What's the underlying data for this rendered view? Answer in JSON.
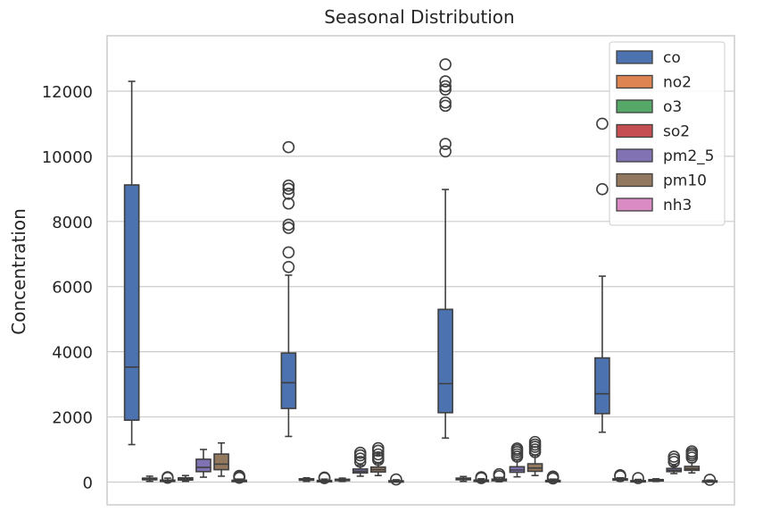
{
  "chart_data": {
    "type": "box",
    "title": "Seasonal Distribution",
    "xlabel": "",
    "ylabel": "Concentration",
    "ylim": [
      -700,
      13700
    ],
    "yticks": [
      0,
      2000,
      4000,
      6000,
      8000,
      10000,
      12000
    ],
    "grid": true,
    "legend_position": "top-right",
    "group_count": 4,
    "series": [
      {
        "name": "co",
        "color": "#4c72b0"
      },
      {
        "name": "no2",
        "color": "#dd8452"
      },
      {
        "name": "o3",
        "color": "#55a868"
      },
      {
        "name": "so2",
        "color": "#c44e52"
      },
      {
        "name": "pm2_5",
        "color": "#8172b3"
      },
      {
        "name": "pm10",
        "color": "#937860"
      },
      {
        "name": "nh3",
        "color": "#da8bc3"
      }
    ],
    "boxes": [
      [
        {
          "whislo": 1150,
          "q1": 1900,
          "med": 3530,
          "q3": 9120,
          "whishi": 12300,
          "fliers": []
        },
        {
          "whislo": 20,
          "q1": 70,
          "med": 95,
          "q3": 120,
          "whishi": 180,
          "fliers": []
        },
        {
          "whislo": 5,
          "q1": 20,
          "med": 35,
          "q3": 60,
          "whishi": 120,
          "fliers": [
            130,
            150
          ]
        },
        {
          "whislo": 20,
          "q1": 60,
          "med": 90,
          "q3": 130,
          "whishi": 200,
          "fliers": []
        },
        {
          "whislo": 150,
          "q1": 320,
          "med": 450,
          "q3": 700,
          "whishi": 1000,
          "fliers": []
        },
        {
          "whislo": 180,
          "q1": 380,
          "med": 550,
          "q3": 860,
          "whishi": 1200,
          "fliers": []
        },
        {
          "whislo": 5,
          "q1": 20,
          "med": 35,
          "q3": 55,
          "whishi": 90,
          "fliers": [
            130,
            160,
            190
          ]
        }
      ],
      [
        {
          "whislo": 1400,
          "q1": 2260,
          "med": 3050,
          "q3": 3960,
          "whishi": 6350,
          "fliers": [
            6600,
            7050,
            7800,
            7900,
            8550,
            8850,
            9000,
            9100,
            10280
          ]
        },
        {
          "whislo": 20,
          "q1": 55,
          "med": 80,
          "q3": 100,
          "whishi": 130,
          "fliers": []
        },
        {
          "whislo": 5,
          "q1": 15,
          "med": 30,
          "q3": 50,
          "whishi": 90,
          "fliers": [
            120,
            140
          ]
        },
        {
          "whislo": 20,
          "q1": 45,
          "med": 65,
          "q3": 85,
          "whishi": 120,
          "fliers": []
        },
        {
          "whislo": 180,
          "q1": 280,
          "med": 330,
          "q3": 400,
          "whishi": 520,
          "fliers": [
            620,
            720,
            820,
            900
          ]
        },
        {
          "whislo": 200,
          "q1": 310,
          "med": 380,
          "q3": 460,
          "whishi": 580,
          "fliers": [
            680,
            760,
            850,
            960,
            1040
          ]
        },
        {
          "whislo": 5,
          "q1": 15,
          "med": 25,
          "q3": 40,
          "whishi": 70,
          "fliers": [
            80
          ]
        }
      ],
      [
        {
          "whislo": 1350,
          "q1": 2130,
          "med": 3020,
          "q3": 5300,
          "whishi": 8980,
          "fliers": [
            10150,
            10380,
            11550,
            11650,
            12050,
            12150,
            12300,
            12820
          ]
        },
        {
          "whislo": 20,
          "q1": 70,
          "med": 95,
          "q3": 120,
          "whishi": 170,
          "fliers": []
        },
        {
          "whislo": 5,
          "q1": 20,
          "med": 40,
          "q3": 60,
          "whishi": 100,
          "fliers": [
            120,
            150
          ]
        },
        {
          "whislo": 10,
          "q1": 40,
          "med": 65,
          "q3": 90,
          "whishi": 140,
          "fliers": [
            180,
            240
          ]
        },
        {
          "whislo": 160,
          "q1": 300,
          "med": 370,
          "q3": 470,
          "whishi": 680,
          "fliers": [
            780,
            850,
            920,
            980,
            1030
          ]
        },
        {
          "whislo": 200,
          "q1": 330,
          "med": 430,
          "q3": 560,
          "whishi": 820,
          "fliers": [
            920,
            1000,
            1080,
            1150,
            1230
          ]
        },
        {
          "whislo": 5,
          "q1": 15,
          "med": 30,
          "q3": 50,
          "whishi": 90,
          "fliers": [
            110,
            150,
            170
          ]
        }
      ],
      [
        {
          "whislo": 1530,
          "q1": 2100,
          "med": 2710,
          "q3": 3810,
          "whishi": 6320,
          "fliers": [
            8990,
            11000
          ]
        },
        {
          "whislo": 30,
          "q1": 60,
          "med": 80,
          "q3": 100,
          "whishi": 130,
          "fliers": [
            180,
            210
          ]
        },
        {
          "whislo": 5,
          "q1": 15,
          "med": 25,
          "q3": 45,
          "whishi": 80,
          "fliers": [
            120
          ]
        },
        {
          "whislo": 20,
          "q1": 40,
          "med": 55,
          "q3": 75,
          "whishi": 100,
          "fliers": []
        },
        {
          "whislo": 260,
          "q1": 320,
          "med": 360,
          "q3": 420,
          "whishi": 500,
          "fliers": [
            620,
            700,
            780
          ]
        },
        {
          "whislo": 280,
          "q1": 360,
          "med": 410,
          "q3": 480,
          "whishi": 600,
          "fliers": [
            750,
            820,
            880,
            940
          ]
        },
        {
          "whislo": 5,
          "q1": 15,
          "med": 25,
          "q3": 40,
          "whishi": 60,
          "fliers": [
            70
          ]
        }
      ]
    ]
  }
}
